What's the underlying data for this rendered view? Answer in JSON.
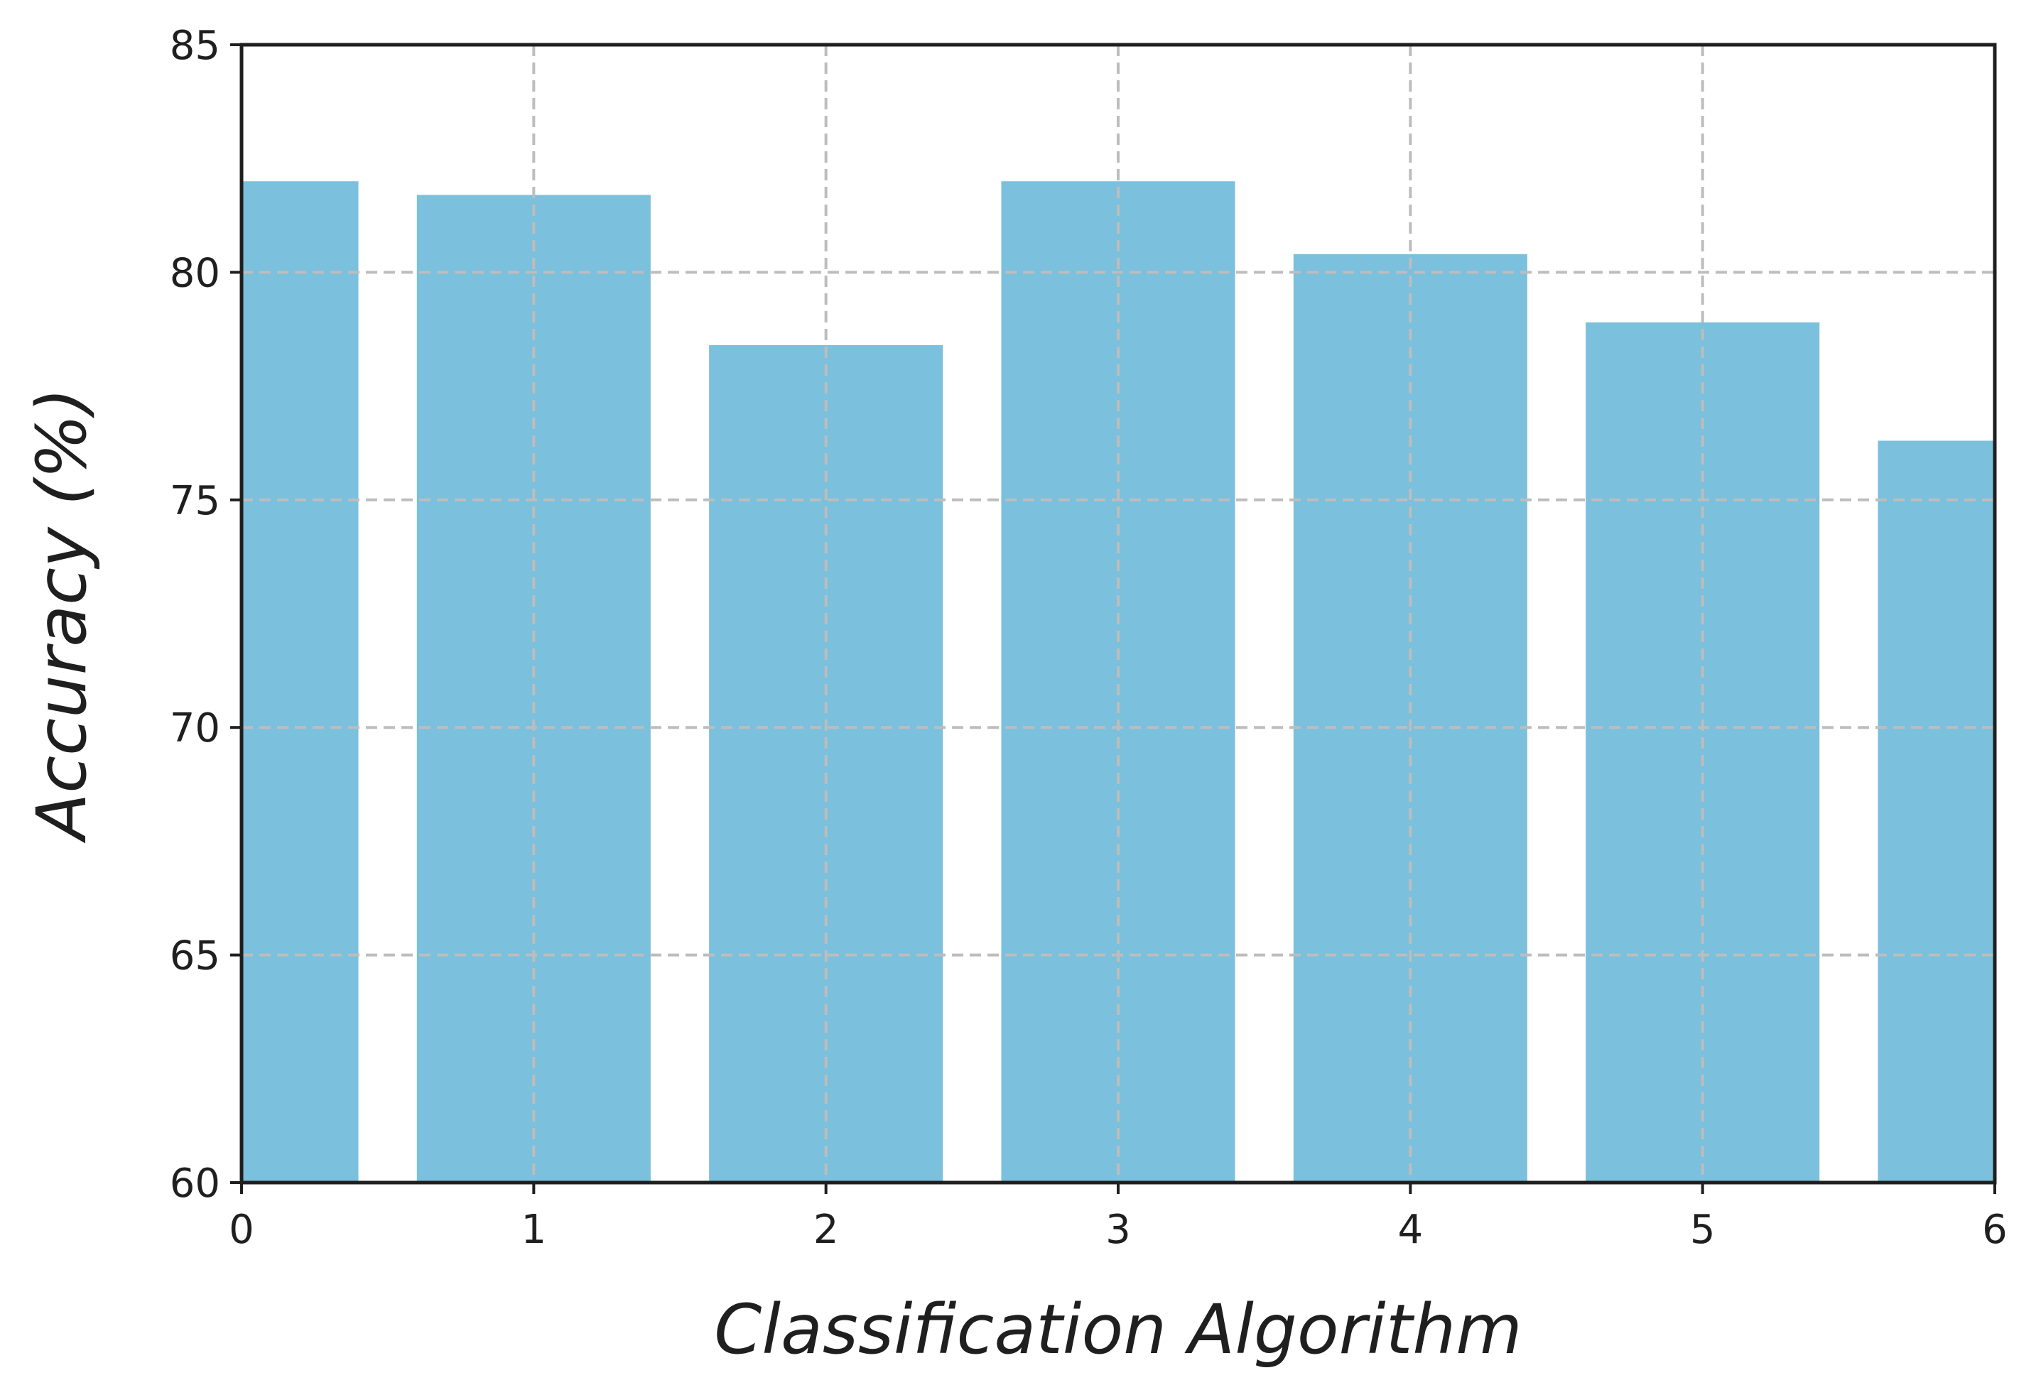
{
  "chart_data": {
    "type": "bar",
    "title": "",
    "xlabel": "Classification Algorithm",
    "ylabel": "Accuracy (%)",
    "categories": [
      0,
      1,
      2,
      3,
      4,
      5,
      6
    ],
    "values": [
      82.0,
      81.7,
      78.4,
      82.0,
      80.4,
      78.9,
      76.3
    ],
    "bar_width": 0.8,
    "xlim": [
      0,
      6
    ],
    "ylim": [
      60,
      85
    ],
    "xticks": [
      "0",
      "1",
      "2",
      "3",
      "4",
      "5",
      "6"
    ],
    "yticks": [
      "60",
      "65",
      "70",
      "75",
      "80",
      "85"
    ],
    "grid": true,
    "legend": "none",
    "colors": {
      "bar": "#7bc0dc",
      "grid": "#bdbdbd",
      "axes": "#1f1f1f"
    }
  }
}
